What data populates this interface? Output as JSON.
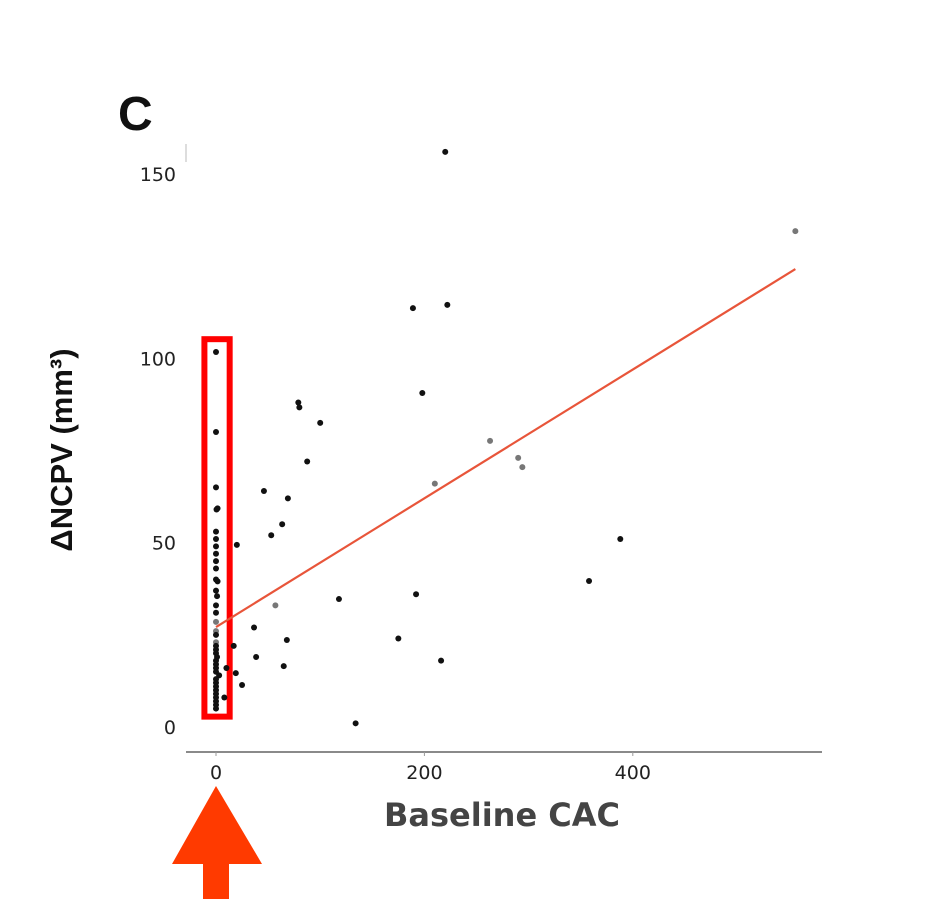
{
  "chart_data": {
    "type": "scatter",
    "panel_label": "C",
    "xlabel": "Baseline CAC",
    "ylabel": "ΔNCPV (mm³)",
    "xlim": [
      -29,
      583
    ],
    "ylim": [
      -6,
      159
    ],
    "xticks": [
      0,
      200,
      400
    ],
    "xtick_labels": [
      "0",
      "200",
      "400"
    ],
    "yticks": [
      0,
      50,
      100,
      150
    ],
    "ytick_labels": [
      "0",
      "50",
      "100",
      "150"
    ],
    "grid": false,
    "colors": {
      "points": "#111111",
      "points_light": "#777777",
      "fit": "#e8553a",
      "highlight": "#ff0000",
      "arrow": "#ff3a00"
    },
    "points": [
      {
        "x": 220,
        "y": 156
      },
      {
        "x": 556,
        "y": 134.5,
        "shade": "light"
      },
      {
        "x": 189,
        "y": 113.6
      },
      {
        "x": 222,
        "y": 114.5
      },
      {
        "x": 79,
        "y": 88
      },
      {
        "x": 80,
        "y": 86.7
      },
      {
        "x": 198,
        "y": 90.6
      },
      {
        "x": 100,
        "y": 82.5
      },
      {
        "x": 87.5,
        "y": 72
      },
      {
        "x": 46,
        "y": 64
      },
      {
        "x": 69,
        "y": 62
      },
      {
        "x": 63.5,
        "y": 55
      },
      {
        "x": 53,
        "y": 52
      },
      {
        "x": 20,
        "y": 49.4
      },
      {
        "x": 263,
        "y": 77.6,
        "shade": "light"
      },
      {
        "x": 290,
        "y": 73,
        "shade": "light"
      },
      {
        "x": 294,
        "y": 70.5,
        "shade": "light"
      },
      {
        "x": 210,
        "y": 66,
        "shade": "light"
      },
      {
        "x": 57,
        "y": 33,
        "shade": "light"
      },
      {
        "x": 118,
        "y": 34.7
      },
      {
        "x": 192,
        "y": 36
      },
      {
        "x": 388,
        "y": 51
      },
      {
        "x": 358,
        "y": 39.6
      },
      {
        "x": 36.5,
        "y": 27
      },
      {
        "x": 68,
        "y": 23.6
      },
      {
        "x": 38.5,
        "y": 19
      },
      {
        "x": 65,
        "y": 16.5
      },
      {
        "x": 175,
        "y": 24
      },
      {
        "x": 216,
        "y": 18
      },
      {
        "x": 134,
        "y": 1
      },
      {
        "x": 19,
        "y": 14.6
      },
      {
        "x": 25,
        "y": 11.4
      },
      {
        "x": 10,
        "y": 16
      },
      {
        "x": 8,
        "y": 8
      },
      {
        "x": 17,
        "y": 22
      },
      {
        "x": 0,
        "y": 101.7
      },
      {
        "x": 0,
        "y": 80
      },
      {
        "x": 0,
        "y": 65
      },
      {
        "x": 0.5,
        "y": 59
      },
      {
        "x": 1.5,
        "y": 59.3
      },
      {
        "x": 0,
        "y": 53
      },
      {
        "x": 0,
        "y": 51
      },
      {
        "x": 0,
        "y": 49
      },
      {
        "x": 0,
        "y": 47
      },
      {
        "x": 0,
        "y": 45
      },
      {
        "x": 0,
        "y": 43
      },
      {
        "x": 0,
        "y": 40
      },
      {
        "x": 1.5,
        "y": 39.5
      },
      {
        "x": 0,
        "y": 37
      },
      {
        "x": 1,
        "y": 35.5
      },
      {
        "x": 0,
        "y": 33
      },
      {
        "x": 0,
        "y": 31
      },
      {
        "x": 0,
        "y": 28.5,
        "shade": "light"
      },
      {
        "x": 0,
        "y": 26,
        "shade": "light"
      },
      {
        "x": 0,
        "y": 25
      },
      {
        "x": 0,
        "y": 23,
        "shade": "light"
      },
      {
        "x": 0,
        "y": 22
      },
      {
        "x": 0,
        "y": 21
      },
      {
        "x": 0,
        "y": 20
      },
      {
        "x": 1,
        "y": 19
      },
      {
        "x": 0,
        "y": 18
      },
      {
        "x": 0,
        "y": 17
      },
      {
        "x": 0,
        "y": 16
      },
      {
        "x": 0,
        "y": 15
      },
      {
        "x": 3,
        "y": 14
      },
      {
        "x": 0,
        "y": 13
      },
      {
        "x": 0,
        "y": 12
      },
      {
        "x": 0,
        "y": 11
      },
      {
        "x": 0,
        "y": 10
      },
      {
        "x": 0,
        "y": 9
      },
      {
        "x": 0,
        "y": 8
      },
      {
        "x": 0,
        "y": 7
      },
      {
        "x": 0,
        "y": 6
      },
      {
        "x": 0,
        "y": 5
      }
    ],
    "fit_line": {
      "x": [
        0,
        556
      ],
      "y": [
        27.1,
        124.2
      ]
    },
    "highlight_box": {
      "x": [
        -14,
        16
      ],
      "y": [
        2,
        106
      ]
    },
    "annotation_arrow_at_x": 0
  }
}
